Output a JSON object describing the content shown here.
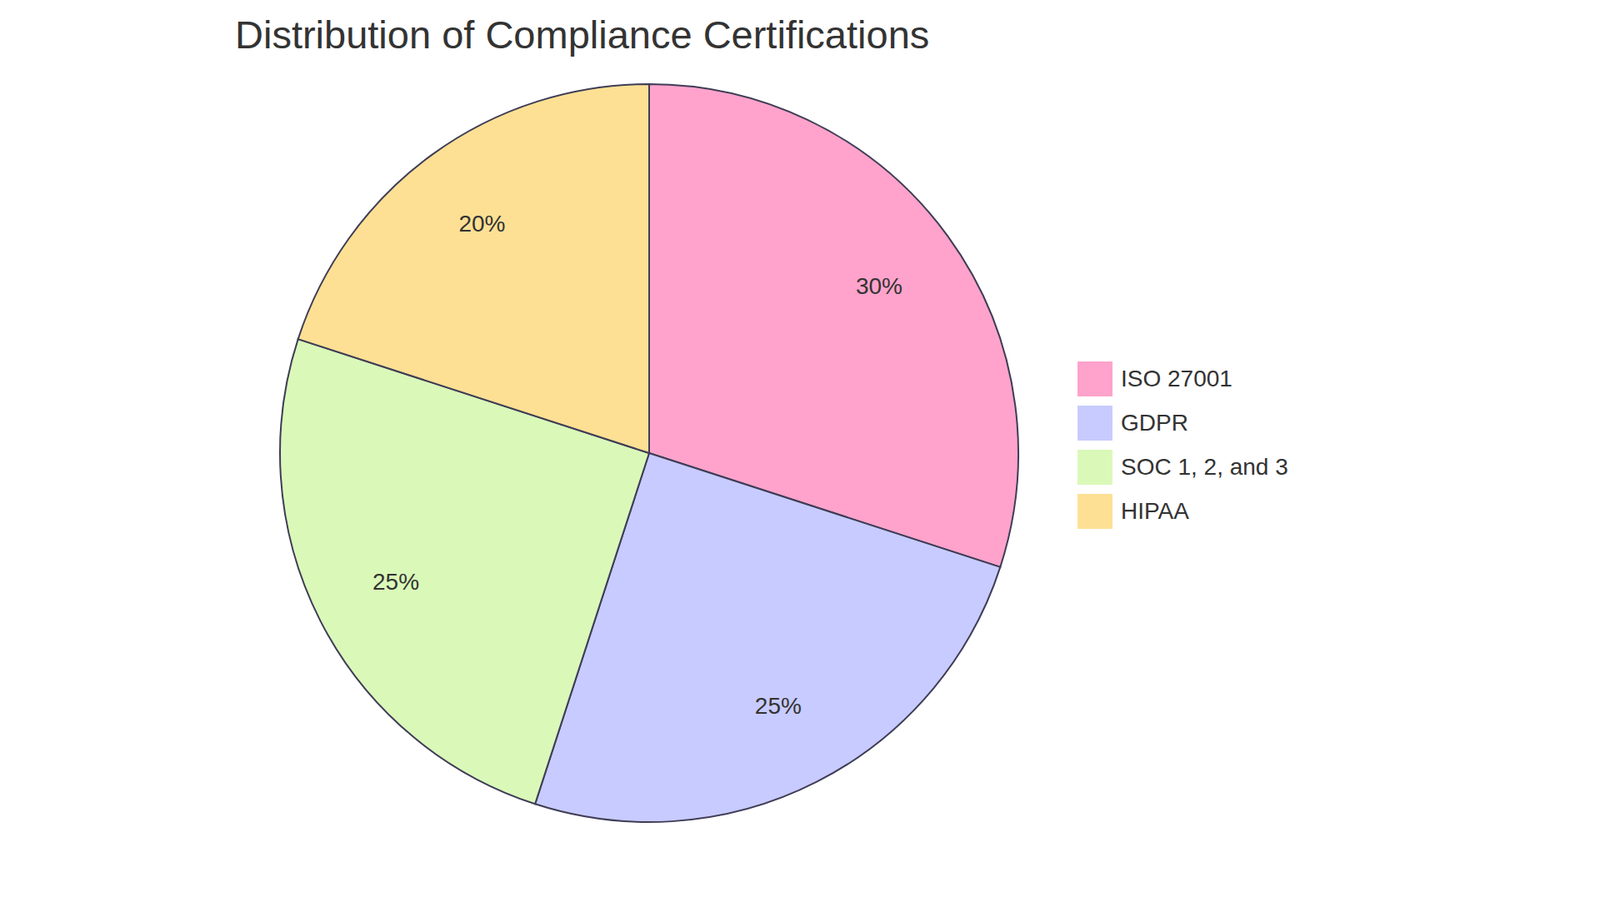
{
  "chart_data": {
    "type": "pie",
    "title": "Distribution of Compliance Certifications",
    "categories": [
      "ISO 27001",
      "GDPR",
      "SOC 1, 2, and 3",
      "HIPAA"
    ],
    "values": [
      30,
      25,
      25,
      20
    ],
    "value_labels": [
      "30%",
      "25%",
      "25%",
      "20%"
    ],
    "colors": [
      "#ffa3cc",
      "#c8cbff",
      "#daf9b9",
      "#fde094"
    ],
    "data_labels": true,
    "legend": "right"
  }
}
